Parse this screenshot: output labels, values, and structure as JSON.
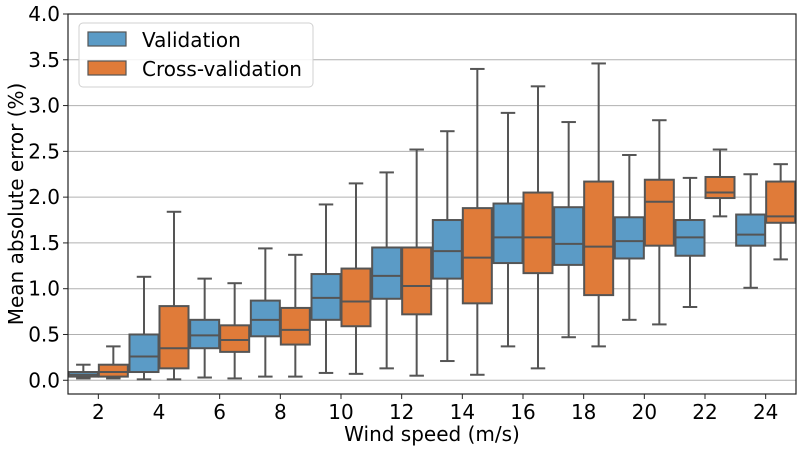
{
  "chart_data": {
    "type": "box",
    "title": "",
    "xlabel": "Wind speed (m/s)",
    "ylabel": "Mean absolute error (%)",
    "ylim": [
      -0.15,
      4.0
    ],
    "yticks": [
      "0.0",
      "0.5",
      "1.0",
      "1.5",
      "2.0",
      "2.5",
      "3.0",
      "3.5",
      "4.0"
    ],
    "ytick_values": [
      0.0,
      0.5,
      1.0,
      1.5,
      2.0,
      2.5,
      3.0,
      3.5,
      4.0
    ],
    "grid": "horizontal",
    "legend_position": "top-left",
    "categories": [
      "2",
      "4",
      "6",
      "8",
      "10",
      "12",
      "14",
      "16",
      "18",
      "20",
      "22",
      "24"
    ],
    "series": [
      {
        "name": "Validation",
        "color": "#5b9bc6",
        "boxes": [
          {
            "whisker_low": 0.02,
            "q1": 0.04,
            "median": 0.06,
            "q3": 0.09,
            "whisker_high": 0.17
          },
          {
            "whisker_low": 0.01,
            "q1": 0.09,
            "median": 0.26,
            "q3": 0.5,
            "whisker_high": 1.13
          },
          {
            "whisker_low": 0.03,
            "q1": 0.35,
            "median": 0.49,
            "q3": 0.66,
            "whisker_high": 1.11
          },
          {
            "whisker_low": 0.04,
            "q1": 0.48,
            "median": 0.66,
            "q3": 0.87,
            "whisker_high": 1.44
          },
          {
            "whisker_low": 0.08,
            "q1": 0.66,
            "median": 0.9,
            "q3": 1.16,
            "whisker_high": 1.92
          },
          {
            "whisker_low": 0.13,
            "q1": 0.89,
            "median": 1.14,
            "q3": 1.45,
            "whisker_high": 2.27
          },
          {
            "whisker_low": 0.21,
            "q1": 1.11,
            "median": 1.41,
            "q3": 1.75,
            "whisker_high": 2.72
          },
          {
            "whisker_low": 0.37,
            "q1": 1.28,
            "median": 1.56,
            "q3": 1.93,
            "whisker_high": 2.92
          },
          {
            "whisker_low": 0.47,
            "q1": 1.26,
            "median": 1.49,
            "q3": 1.89,
            "whisker_high": 2.82
          },
          {
            "whisker_low": 0.66,
            "q1": 1.33,
            "median": 1.52,
            "q3": 1.78,
            "whisker_high": 2.46
          },
          {
            "whisker_low": 0.8,
            "q1": 1.36,
            "median": 1.56,
            "q3": 1.75,
            "whisker_high": 2.21
          },
          {
            "whisker_low": 1.01,
            "q1": 1.47,
            "median": 1.59,
            "q3": 1.81,
            "whisker_high": 2.25
          }
        ]
      },
      {
        "name": "Cross-validation",
        "color": "#e07b39",
        "boxes": [
          {
            "whisker_low": 0.02,
            "q1": 0.04,
            "median": 0.09,
            "q3": 0.17,
            "whisker_high": 0.37
          },
          {
            "whisker_low": 0.01,
            "q1": 0.13,
            "median": 0.35,
            "q3": 0.81,
            "whisker_high": 1.84
          },
          {
            "whisker_low": 0.02,
            "q1": 0.31,
            "median": 0.44,
            "q3": 0.6,
            "whisker_high": 1.06
          },
          {
            "whisker_low": 0.04,
            "q1": 0.39,
            "median": 0.55,
            "q3": 0.79,
            "whisker_high": 1.37
          },
          {
            "whisker_low": 0.07,
            "q1": 0.59,
            "median": 0.86,
            "q3": 1.22,
            "whisker_high": 2.15
          },
          {
            "whisker_low": 0.05,
            "q1": 0.72,
            "median": 1.03,
            "q3": 1.45,
            "whisker_high": 2.52
          },
          {
            "whisker_low": 0.06,
            "q1": 0.84,
            "median": 1.34,
            "q3": 1.88,
            "whisker_high": 3.4
          },
          {
            "whisker_low": 0.13,
            "q1": 1.17,
            "median": 1.56,
            "q3": 2.05,
            "whisker_high": 3.21
          },
          {
            "whisker_low": 0.37,
            "q1": 0.93,
            "median": 1.46,
            "q3": 2.17,
            "whisker_high": 3.46
          },
          {
            "whisker_low": 0.61,
            "q1": 1.47,
            "median": 1.95,
            "q3": 2.19,
            "whisker_high": 2.84
          },
          {
            "whisker_low": 1.79,
            "q1": 1.99,
            "median": 2.05,
            "q3": 2.22,
            "whisker_high": 2.52
          },
          {
            "whisker_low": 1.32,
            "q1": 1.72,
            "median": 1.79,
            "q3": 2.17,
            "whisker_high": 2.36
          }
        ]
      }
    ],
    "edge_color": "#555555",
    "grid_color": "#b0b0b0"
  }
}
